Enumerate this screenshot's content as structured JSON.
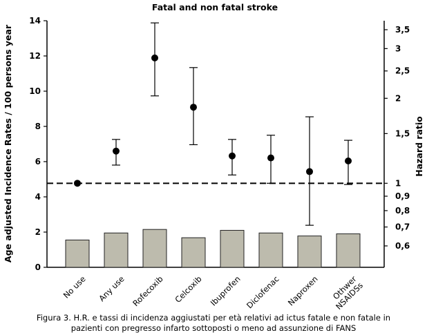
{
  "chart_data": {
    "type": "bar",
    "title": "Fatal and non fatal stroke",
    "categories": [
      "No use",
      "Any use",
      "Rofecoxib",
      "Celcoxib",
      "Ibuprofen",
      "Diclofenac",
      "Naproxen",
      [
        "Othwer",
        "NSAIDSs"
      ]
    ],
    "left_axis": {
      "label": "Age adjusted Incidence Rates / 100 persons year",
      "ylim": [
        0,
        14
      ],
      "ticks": [
        0,
        2,
        4,
        6,
        8,
        10,
        12,
        14
      ],
      "tick_labels": [
        "0",
        "2",
        "4",
        "6",
        "8",
        "10",
        "12",
        "14"
      ]
    },
    "right_axis": {
      "label": "Hazard ratio",
      "scale": "log",
      "ticks": [
        0.6,
        0.7,
        0.8,
        0.9,
        1,
        1.5,
        2,
        2.5,
        3,
        3.5
      ],
      "tick_labels": [
        "0,6",
        "0,7",
        "0,8",
        "0,9",
        "1",
        "1,5",
        "2",
        "2,5",
        "3",
        "3,5"
      ]
    },
    "series": [
      {
        "type": "bar",
        "axis": "left",
        "values": [
          1.55,
          1.95,
          2.15,
          1.68,
          2.1,
          1.95,
          1.78,
          1.9
        ]
      },
      {
        "type": "point-with-errorbars",
        "axis": "right",
        "values": [
          1.0,
          1.3,
          2.78,
          1.86,
          1.25,
          1.23,
          1.1,
          1.2
        ],
        "lower": [
          1.0,
          1.16,
          2.04,
          1.37,
          1.07,
          1.0,
          0.71,
          0.99
        ],
        "upper": [
          1.0,
          1.43,
          3.7,
          2.57,
          1.43,
          1.48,
          1.72,
          1.42
        ]
      }
    ],
    "reference_line": {
      "axis": "right",
      "value": 1,
      "style": "dashed"
    },
    "caption": [
      "Figura 3. H.R. e tassi di incidenza aggiustati per età relativi ad ictus fatale e non fatale in",
      "pazienti con pregresso infarto sottoposti o meno ad assunzione di FANS"
    ],
    "colors": {
      "bar_fill": "#bdbbad",
      "bar_stroke": "#222222",
      "marker": "#000000"
    }
  }
}
